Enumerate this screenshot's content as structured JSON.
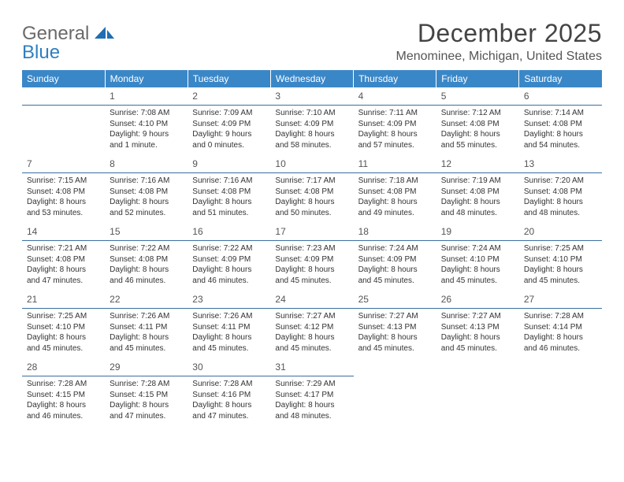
{
  "logo": {
    "word1": "General",
    "word2": "Blue"
  },
  "title": "December 2025",
  "subtitle": "Menominee, Michigan, United States",
  "colors": {
    "header_bg": "#3a87c8",
    "header_fg": "#ffffff",
    "rule": "#3a6f9e",
    "logo_gray": "#6a6a6a",
    "logo_blue": "#2f7fbf",
    "text": "#333333"
  },
  "days": [
    "Sunday",
    "Monday",
    "Tuesday",
    "Wednesday",
    "Thursday",
    "Friday",
    "Saturday"
  ],
  "weeks": [
    [
      null,
      {
        "n": "1",
        "sr": "7:08 AM",
        "ss": "4:10 PM",
        "dl": "9 hours and 1 minute."
      },
      {
        "n": "2",
        "sr": "7:09 AM",
        "ss": "4:09 PM",
        "dl": "9 hours and 0 minutes."
      },
      {
        "n": "3",
        "sr": "7:10 AM",
        "ss": "4:09 PM",
        "dl": "8 hours and 58 minutes."
      },
      {
        "n": "4",
        "sr": "7:11 AM",
        "ss": "4:09 PM",
        "dl": "8 hours and 57 minutes."
      },
      {
        "n": "5",
        "sr": "7:12 AM",
        "ss": "4:08 PM",
        "dl": "8 hours and 55 minutes."
      },
      {
        "n": "6",
        "sr": "7:14 AM",
        "ss": "4:08 PM",
        "dl": "8 hours and 54 minutes."
      }
    ],
    [
      {
        "n": "7",
        "sr": "7:15 AM",
        "ss": "4:08 PM",
        "dl": "8 hours and 53 minutes."
      },
      {
        "n": "8",
        "sr": "7:16 AM",
        "ss": "4:08 PM",
        "dl": "8 hours and 52 minutes."
      },
      {
        "n": "9",
        "sr": "7:16 AM",
        "ss": "4:08 PM",
        "dl": "8 hours and 51 minutes."
      },
      {
        "n": "10",
        "sr": "7:17 AM",
        "ss": "4:08 PM",
        "dl": "8 hours and 50 minutes."
      },
      {
        "n": "11",
        "sr": "7:18 AM",
        "ss": "4:08 PM",
        "dl": "8 hours and 49 minutes."
      },
      {
        "n": "12",
        "sr": "7:19 AM",
        "ss": "4:08 PM",
        "dl": "8 hours and 48 minutes."
      },
      {
        "n": "13",
        "sr": "7:20 AM",
        "ss": "4:08 PM",
        "dl": "8 hours and 48 minutes."
      }
    ],
    [
      {
        "n": "14",
        "sr": "7:21 AM",
        "ss": "4:08 PM",
        "dl": "8 hours and 47 minutes."
      },
      {
        "n": "15",
        "sr": "7:22 AM",
        "ss": "4:08 PM",
        "dl": "8 hours and 46 minutes."
      },
      {
        "n": "16",
        "sr": "7:22 AM",
        "ss": "4:09 PM",
        "dl": "8 hours and 46 minutes."
      },
      {
        "n": "17",
        "sr": "7:23 AM",
        "ss": "4:09 PM",
        "dl": "8 hours and 45 minutes."
      },
      {
        "n": "18",
        "sr": "7:24 AM",
        "ss": "4:09 PM",
        "dl": "8 hours and 45 minutes."
      },
      {
        "n": "19",
        "sr": "7:24 AM",
        "ss": "4:10 PM",
        "dl": "8 hours and 45 minutes."
      },
      {
        "n": "20",
        "sr": "7:25 AM",
        "ss": "4:10 PM",
        "dl": "8 hours and 45 minutes."
      }
    ],
    [
      {
        "n": "21",
        "sr": "7:25 AM",
        "ss": "4:10 PM",
        "dl": "8 hours and 45 minutes."
      },
      {
        "n": "22",
        "sr": "7:26 AM",
        "ss": "4:11 PM",
        "dl": "8 hours and 45 minutes."
      },
      {
        "n": "23",
        "sr": "7:26 AM",
        "ss": "4:11 PM",
        "dl": "8 hours and 45 minutes."
      },
      {
        "n": "24",
        "sr": "7:27 AM",
        "ss": "4:12 PM",
        "dl": "8 hours and 45 minutes."
      },
      {
        "n": "25",
        "sr": "7:27 AM",
        "ss": "4:13 PM",
        "dl": "8 hours and 45 minutes."
      },
      {
        "n": "26",
        "sr": "7:27 AM",
        "ss": "4:13 PM",
        "dl": "8 hours and 45 minutes."
      },
      {
        "n": "27",
        "sr": "7:28 AM",
        "ss": "4:14 PM",
        "dl": "8 hours and 46 minutes."
      }
    ],
    [
      {
        "n": "28",
        "sr": "7:28 AM",
        "ss": "4:15 PM",
        "dl": "8 hours and 46 minutes."
      },
      {
        "n": "29",
        "sr": "7:28 AM",
        "ss": "4:15 PM",
        "dl": "8 hours and 47 minutes."
      },
      {
        "n": "30",
        "sr": "7:28 AM",
        "ss": "4:16 PM",
        "dl": "8 hours and 47 minutes."
      },
      {
        "n": "31",
        "sr": "7:29 AM",
        "ss": "4:17 PM",
        "dl": "8 hours and 48 minutes."
      },
      null,
      null,
      null
    ]
  ],
  "labels": {
    "sunrise": "Sunrise:",
    "sunset": "Sunset:",
    "daylight": "Daylight:"
  }
}
